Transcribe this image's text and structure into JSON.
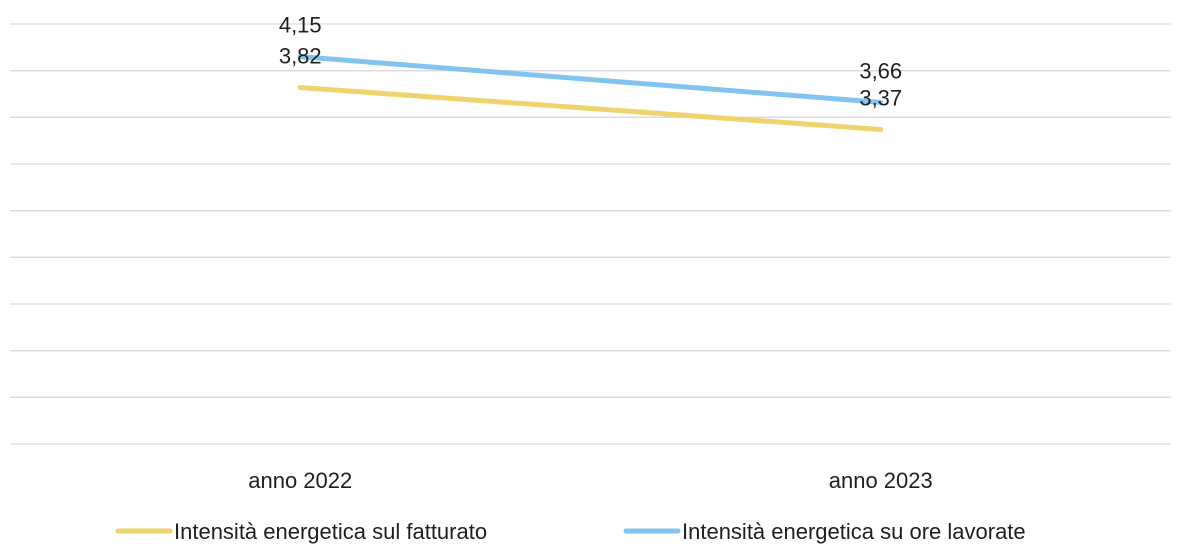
{
  "chart_data": {
    "type": "line",
    "categories": [
      "anno 2022",
      "anno 2023"
    ],
    "series": [
      {
        "name": "Intensità energetica sul fatturato",
        "values": [
          3.82,
          3.37
        ],
        "labels": [
          "3,82",
          "3,37"
        ],
        "color": "#efd46d"
      },
      {
        "name": "Intensità energetica su ore lavorate",
        "values": [
          4.15,
          3.66
        ],
        "labels": [
          "4,15",
          "3,66"
        ],
        "color": "#82c4ef"
      }
    ],
    "title": "",
    "xlabel": "",
    "ylabel": "",
    "ylim": [
      0,
      4.5
    ],
    "grid": true,
    "legend": "bottom"
  }
}
